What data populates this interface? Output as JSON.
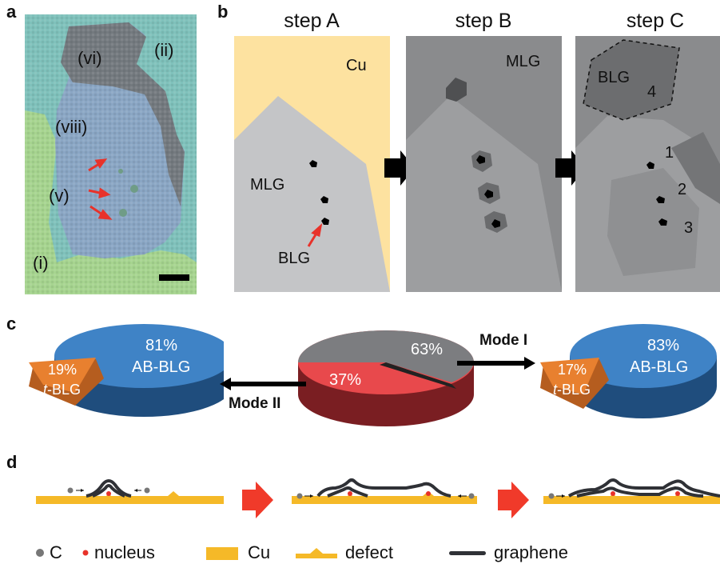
{
  "panels": {
    "a": {
      "label": "a",
      "regions": {
        "vi": "(vi)",
        "ii": "(ii)",
        "viii": "(viii)",
        "v": "(v)",
        "i": "(i)"
      }
    },
    "b": {
      "label": "b",
      "steps": [
        "step A",
        "step B",
        "step C"
      ],
      "stepA": {
        "cu": "Cu",
        "mlg": "MLG",
        "blg": "BLG"
      },
      "stepB": {
        "mlg": "MLG"
      },
      "stepC": {
        "blg": "BLG",
        "n1": "1",
        "n2": "2",
        "n3": "3",
        "n4": "4"
      }
    },
    "c": {
      "label": "c",
      "left": {
        "ab_pct": "81%",
        "ab_label": "AB-BLG",
        "t_pct": "19%",
        "t_label": "-BLG",
        "t_prefix": "t"
      },
      "center": {
        "gray_pct": "63%",
        "red_pct": "37%"
      },
      "right": {
        "ab_pct": "83%",
        "ab_label": "AB-BLG",
        "t_pct": "17%",
        "t_label": "-BLG",
        "t_prefix": "t"
      },
      "mode1": "Mode I",
      "mode2": "Mode II"
    },
    "d": {
      "label": "d",
      "legend": {
        "c": "C",
        "nucleus": "nucleus",
        "cu": "Cu",
        "defect": "defect",
        "graphene": "graphene"
      }
    }
  },
  "colors": {
    "cu": "#f5b928",
    "cu_light": "#fde2a0",
    "gray_mlg": "#c4c5c7",
    "dark_gray": "#8a8b8d",
    "blue": "#3f83c6",
    "orange": "#e8802f",
    "red": "#e8494c",
    "arrow_red": "#f03a2a",
    "graphene": "#2f3136"
  }
}
